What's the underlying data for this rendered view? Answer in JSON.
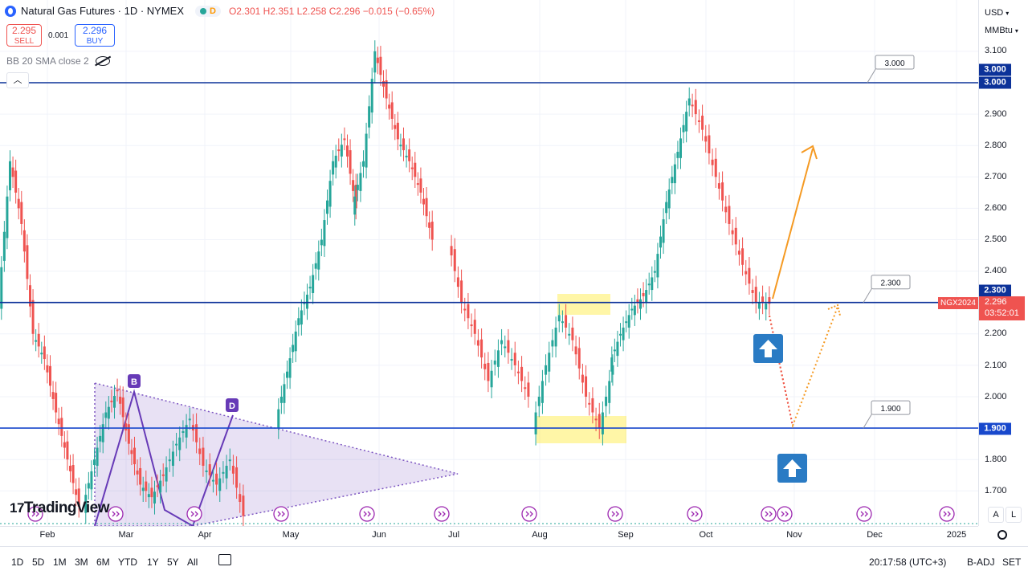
{
  "header": {
    "symbol_title": "Natural Gas Futures · 1D · NYMEX",
    "market_badge": "D",
    "ohlc": "O2.301 H2.351 L2.258 C2.296 −0.015 (−0.65%)"
  },
  "trade": {
    "sell_price": "2.295",
    "sell_label": "SELL",
    "spread": "0.001",
    "buy_price": "2.296",
    "buy_label": "BUY"
  },
  "indicator": {
    "label": "BB 20 SMA close 2"
  },
  "logo": "TradingView",
  "right_axis": {
    "currency": "USD",
    "unit": "MMBtu",
    "tick_labels": [
      "3.100",
      "2.900",
      "2.800",
      "2.700",
      "2.600",
      "2.500",
      "2.400",
      "2.200",
      "2.100",
      "2.000",
      "1.800",
      "1.700"
    ],
    "tag_3000": "3.000",
    "tag_2300": "2.300",
    "tag_1900": "1.900",
    "current_price": "2.296",
    "countdown": "03:52:01",
    "contract": "NGX2024",
    "auto_btn": "A",
    "log_btn": "L"
  },
  "time_axis": {
    "months": [
      "Feb",
      "Mar",
      "Apr",
      "May",
      "Jun",
      "Jul",
      "Aug",
      "Sep",
      "Oct",
      "Nov",
      "Dec",
      "2025"
    ]
  },
  "bottom_bar": {
    "timeframes": [
      "1D",
      "5D",
      "1M",
      "3M",
      "6M",
      "YTD",
      "1Y",
      "5Y",
      "All"
    ],
    "clock": "20:17:58 (UTC+3)",
    "adj": "B-ADJ",
    "session": "SET"
  },
  "chart_data": {
    "type": "candlestick",
    "y_range": [
      1.65,
      3.17
    ],
    "levels": [
      {
        "price": 3.0,
        "label": "3.000"
      },
      {
        "price": 2.3,
        "label": "2.300"
      },
      {
        "price": 1.9,
        "label": "1.900"
      }
    ],
    "pattern_labels": [
      "B",
      "D"
    ],
    "candles": {
      "Feb": [
        [
          2.3,
          2.75
        ],
        [
          2.75,
          2.55
        ],
        [
          2.55,
          2.2
        ],
        [
          2.2,
          2.12
        ],
        [
          2.12,
          1.95
        ],
        [
          1.95,
          1.8
        ],
        [
          1.8,
          1.65
        ]
      ],
      "Mar": [
        [
          1.65,
          1.8
        ],
        [
          1.8,
          1.95
        ],
        [
          1.95,
          2.02
        ],
        [
          2.02,
          1.85
        ],
        [
          1.85,
          1.72
        ],
        [
          1.72,
          1.68
        ],
        [
          1.68,
          1.75
        ]
      ],
      "Apr": [
        [
          1.75,
          1.85
        ],
        [
          1.85,
          1.93
        ],
        [
          1.93,
          1.78
        ],
        [
          1.78,
          1.72
        ],
        [
          1.72,
          1.8
        ],
        [
          1.8,
          1.62
        ]
      ],
      "May": [
        [
          1.92,
          2.08
        ],
        [
          2.08,
          2.25
        ],
        [
          2.25,
          2.35
        ],
        [
          2.35,
          2.5
        ],
        [
          2.5,
          2.75
        ],
        [
          2.75,
          2.82
        ],
        [
          2.82,
          2.6
        ]
      ],
      "Jun": [
        [
          2.6,
          2.75
        ],
        [
          2.75,
          3.1
        ],
        [
          3.1,
          2.95
        ],
        [
          2.95,
          2.82
        ],
        [
          2.82,
          2.75
        ],
        [
          2.75,
          2.65
        ],
        [
          2.65,
          2.5
        ]
      ],
      "Jul": [
        [
          2.5,
          2.3
        ],
        [
          2.3,
          2.2
        ],
        [
          2.2,
          2.05
        ],
        [
          2.05,
          2.18
        ],
        [
          2.18,
          2.1
        ],
        [
          2.1,
          2.0
        ]
      ],
      "Aug": [
        [
          1.9,
          2.1
        ],
        [
          2.1,
          2.26
        ],
        [
          2.26,
          2.18
        ],
        [
          2.18,
          2.0
        ],
        [
          2.0,
          1.9
        ],
        [
          1.9,
          2.1
        ]
      ],
      "Sep": [
        [
          2.1,
          2.2
        ],
        [
          2.2,
          2.28
        ],
        [
          2.28,
          2.32
        ],
        [
          2.32,
          2.4
        ],
        [
          2.4,
          2.62
        ],
        [
          2.62,
          2.78
        ],
        [
          2.78,
          2.95
        ]
      ],
      "Oct": [
        [
          2.95,
          2.85
        ],
        [
          2.85,
          2.7
        ],
        [
          2.7,
          2.55
        ],
        [
          2.55,
          2.42
        ],
        [
          2.42,
          2.3
        ],
        [
          2.3,
          2.296
        ]
      ]
    }
  }
}
